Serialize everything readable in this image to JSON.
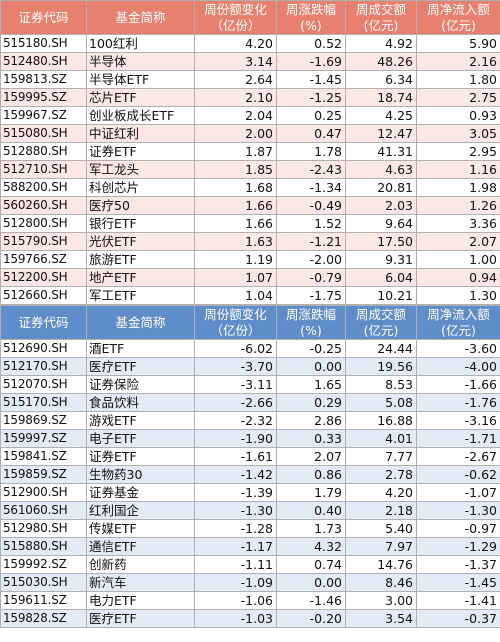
{
  "headers": {
    "col1": "证券代码",
    "col2": "基金简称",
    "col3": "周份额变化(亿份)",
    "col3_line1": "周份额变化",
    "col3_line2": "（亿份）",
    "col4_line1": "周涨跌幅",
    "col4_line2": "(%)",
    "col5_line1": "周成交额",
    "col5_line2": "(亿元)",
    "col6_line1": "周净流入额",
    "col6_line2": "(亿元)"
  },
  "colors": {
    "top_header": "#e7806f",
    "top_stripe": "#fbe8e4",
    "bottom_header": "#5f8dc9",
    "bottom_stripe": "#e2ebf6"
  },
  "top_rows": [
    [
      "515180.SH",
      "100红利",
      "4.20",
      "0.52",
      "4.92",
      "5.90"
    ],
    [
      "512480.SH",
      "半导体",
      "3.14",
      "-1.69",
      "48.26",
      "2.16"
    ],
    [
      "159813.SZ",
      "半导体ETF",
      "2.64",
      "-1.45",
      "6.34",
      "1.80"
    ],
    [
      "159995.SZ",
      "芯片ETF",
      "2.10",
      "-1.25",
      "18.74",
      "2.75"
    ],
    [
      "159967.SZ",
      "创业板成长ETF",
      "2.04",
      "0.25",
      "4.25",
      "0.93"
    ],
    [
      "515080.SH",
      "中证红利",
      "2.00",
      "0.47",
      "12.47",
      "3.05"
    ],
    [
      "512880.SH",
      "证券ETF",
      "1.87",
      "1.78",
      "41.31",
      "2.95"
    ],
    [
      "512710.SH",
      "军工龙头",
      "1.85",
      "-2.43",
      "4.63",
      "1.16"
    ],
    [
      "588200.SH",
      "科创芯片",
      "1.68",
      "-1.34",
      "20.81",
      "1.98"
    ],
    [
      "560260.SH",
      "医疗50",
      "1.66",
      "-0.49",
      "2.03",
      "1.26"
    ],
    [
      "512800.SH",
      "银行ETF",
      "1.66",
      "1.52",
      "9.64",
      "3.36"
    ],
    [
      "515790.SH",
      "光伏ETF",
      "1.63",
      "-1.21",
      "17.50",
      "2.07"
    ],
    [
      "159766.SZ",
      "旅游ETF",
      "1.19",
      "-2.00",
      "9.31",
      "1.00"
    ],
    [
      "512200.SH",
      "地产ETF",
      "1.07",
      "-0.79",
      "6.04",
      "0.94"
    ],
    [
      "512660.SH",
      "军工ETF",
      "1.04",
      "-1.75",
      "10.21",
      "1.30"
    ]
  ],
  "bottom_rows": [
    [
      "512690.SH",
      "酒ETF",
      "-6.02",
      "-0.25",
      "24.44",
      "-3.60"
    ],
    [
      "512170.SH",
      "医疗ETF",
      "-3.70",
      "0.00",
      "19.56",
      "-4.00"
    ],
    [
      "512070.SH",
      "证券保险",
      "-3.11",
      "1.65",
      "8.53",
      "-1.66"
    ],
    [
      "515170.SH",
      "食品饮料",
      "-2.66",
      "0.29",
      "5.08",
      "-1.76"
    ],
    [
      "159869.SZ",
      "游戏ETF",
      "-2.32",
      "2.86",
      "16.88",
      "-3.16"
    ],
    [
      "159997.SZ",
      "电子ETF",
      "-1.90",
      "0.33",
      "4.01",
      "-1.71"
    ],
    [
      "159841.SZ",
      "证券ETF",
      "-1.61",
      "2.07",
      "7.77",
      "-2.67"
    ],
    [
      "159859.SZ",
      "生物药30",
      "-1.42",
      "0.86",
      "2.78",
      "-0.62"
    ],
    [
      "512900.SH",
      "证券基金",
      "-1.39",
      "1.79",
      "4.20",
      "-1.07"
    ],
    [
      "561060.SH",
      "红利国企",
      "-1.30",
      "0.40",
      "2.18",
      "-1.30"
    ],
    [
      "512980.SH",
      "传媒ETF",
      "-1.28",
      "1.73",
      "5.40",
      "-0.97"
    ],
    [
      "515880.SH",
      "通信ETF",
      "-1.17",
      "4.32",
      "7.97",
      "-1.29"
    ],
    [
      "159992.SZ",
      "创新药",
      "-1.11",
      "0.74",
      "14.76",
      "-1.37"
    ],
    [
      "515030.SH",
      "新汽车",
      "-1.09",
      "0.00",
      "8.46",
      "-1.45"
    ],
    [
      "159611.SZ",
      "电力ETF",
      "-1.06",
      "-1.46",
      "3.00",
      "-1.41"
    ],
    [
      "159828.SZ",
      "医疗ETF",
      "-1.03",
      "-0.20",
      "3.54",
      "-0.37"
    ]
  ]
}
